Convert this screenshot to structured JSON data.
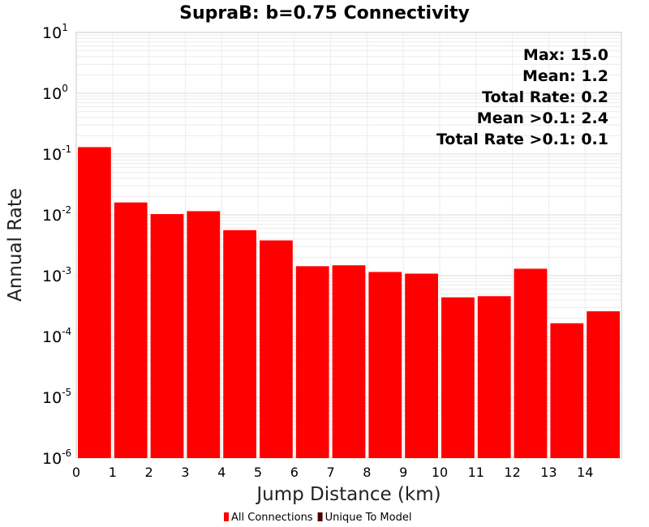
{
  "chart_data": {
    "type": "bar",
    "title": "SupraB: b=0.75 Connectivity",
    "xlabel": "Jump Distance (km)",
    "ylabel": "Annual Rate",
    "yscale": "log",
    "ylim": [
      1e-06,
      10
    ],
    "xlim": [
      0,
      15
    ],
    "x_ticks": [
      "0",
      "1",
      "2",
      "3",
      "4",
      "5",
      "6",
      "7",
      "8",
      "9",
      "10",
      "11",
      "12",
      "13",
      "14"
    ],
    "y_ticks": [
      {
        "base": "10",
        "exp": "-6"
      },
      {
        "base": "10",
        "exp": "-5"
      },
      {
        "base": "10",
        "exp": "-4"
      },
      {
        "base": "10",
        "exp": "-3"
      },
      {
        "base": "10",
        "exp": "-2"
      },
      {
        "base": "10",
        "exp": "-1"
      },
      {
        "base": "10",
        "exp": "0"
      },
      {
        "base": "10",
        "exp": "1"
      }
    ],
    "grid": true,
    "legend_placement": "bottom",
    "series": [
      {
        "name": "All Connections",
        "color": "#ff0000",
        "bins": [
          0,
          1,
          2,
          3,
          4,
          5,
          6,
          7,
          8,
          9,
          10,
          11,
          12,
          13,
          14
        ],
        "values": [
          0.13,
          0.016,
          0.0103,
          0.0115,
          0.0056,
          0.0038,
          0.00143,
          0.00148,
          0.00115,
          0.00108,
          0.00044,
          0.00046,
          0.0013,
          0.000165,
          0.00026
        ]
      },
      {
        "name": "Unique To Model",
        "color": "#4d0000",
        "bins": [],
        "values": []
      }
    ],
    "annotations": [
      "Max: 15.0",
      "Mean: 1.2",
      "Total Rate: 0.2",
      "Mean >0.1: 2.4",
      "Total Rate >0.1: 0.1"
    ]
  }
}
